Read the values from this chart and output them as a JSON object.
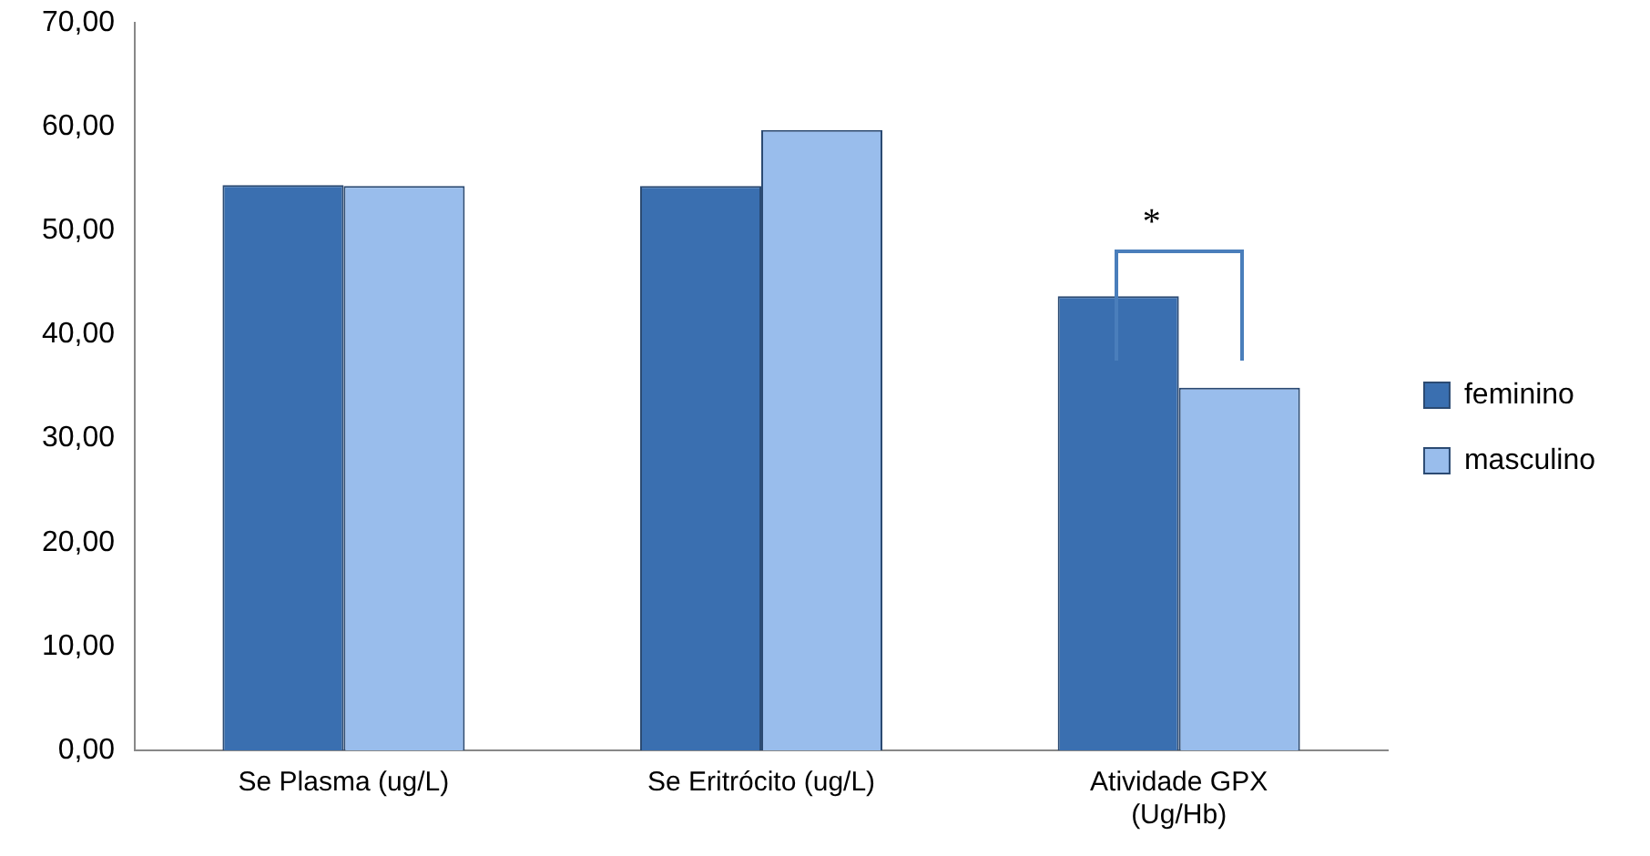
{
  "chart_data": {
    "type": "bar",
    "categories": [
      "Se Plasma (ug/L)",
      "Se Eritrócito (ug/L)",
      "Atividade GPX (Ug/Hb)"
    ],
    "series": [
      {
        "name": "feminino",
        "color": "#3a6fb0",
        "values": [
          54.4,
          54.3,
          43.7
        ]
      },
      {
        "name": "masculino",
        "color": "#99bdec",
        "values": [
          54.3,
          59.7,
          34.9
        ]
      }
    ],
    "ylim": [
      0,
      70
    ],
    "yticks": [
      {
        "value": 0,
        "label": "0,00"
      },
      {
        "value": 10,
        "label": "10,00"
      },
      {
        "value": 20,
        "label": "20,00"
      },
      {
        "value": 30,
        "label": "30,00"
      },
      {
        "value": 40,
        "label": "40,00"
      },
      {
        "value": 50,
        "label": "50,00"
      },
      {
        "value": 60,
        "label": "60,00"
      },
      {
        "value": 70,
        "label": "70,00"
      }
    ],
    "grid": false,
    "legend": "right",
    "annotations": [
      "*"
    ]
  }
}
